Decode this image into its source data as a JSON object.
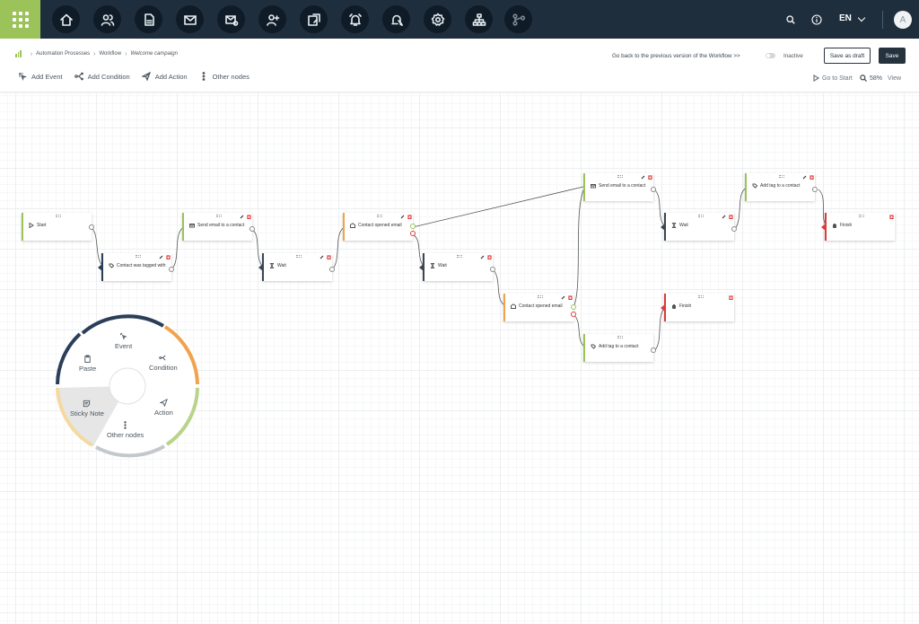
{
  "topbar": {
    "nav_icons": [
      "home-icon",
      "contacts-icon",
      "document-icon",
      "mail-icon",
      "mail-settings-icon",
      "add-user-icon",
      "landing-page-icon",
      "alarm-icon",
      "automation-icon",
      "settings-icon",
      "hierarchy-icon",
      "workflow-icon"
    ],
    "language": "EN",
    "avatar_initial": "A"
  },
  "breadcrumb": {
    "items": [
      "Automation Processes",
      "Workflow"
    ],
    "current": "Welcome campaign"
  },
  "toolbar": {
    "add_event": "Add Event",
    "add_condition": "Add Condition",
    "add_action": "Add Action",
    "other_nodes": "Other nodes"
  },
  "header_actions": {
    "prev_version_link": "Go back to the previous version of the Workflow >>",
    "status_label": "Inactive",
    "status_active": false,
    "save_draft": "Save as draft",
    "save": "Save"
  },
  "view_controls": {
    "go_to_start": "Go to Start",
    "zoom": "58%",
    "view": "View"
  },
  "nodes": [
    {
      "label": "Start"
    },
    {
      "label": "Contact was tagged with"
    },
    {
      "label": "Send email to a contact"
    },
    {
      "label": "Wait"
    },
    {
      "label": "Contact opened email"
    },
    {
      "label": "Wait"
    },
    {
      "label": "Contact opened email"
    },
    {
      "label": "Send email to a contact"
    },
    {
      "label": "Add tag to a contact"
    },
    {
      "label": "Wait"
    },
    {
      "label": "Finish"
    },
    {
      "label": "Add tag to a contact"
    },
    {
      "label": "Finish"
    }
  ],
  "radial_menu": {
    "event": "Event",
    "condition": "Condition",
    "action": "Action",
    "other_nodes": "Other nodes",
    "sticky_note": "Sticky Note",
    "paste": "Paste"
  },
  "colors": {
    "topbar": "#1f2e3d",
    "brand_green": "#9bc35a",
    "event_green": "#9bc35a",
    "condition_orange": "#f0a24c",
    "wait_dark": "#3a4653",
    "finish_red": "#e03a3a",
    "save_button": "#26323e"
  }
}
